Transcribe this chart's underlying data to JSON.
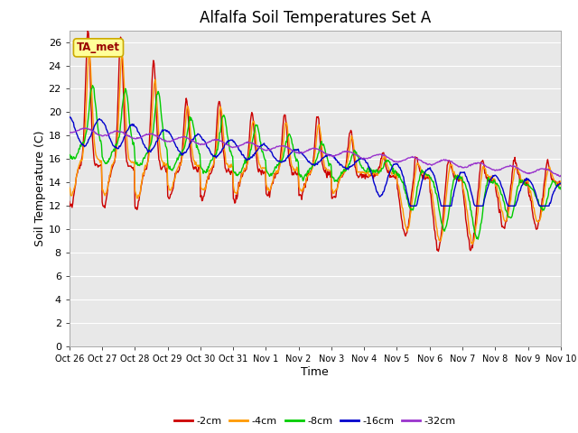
{
  "title": "Alfalfa Soil Temperatures Set A",
  "xlabel": "Time",
  "ylabel": "Soil Temperature (C)",
  "ylim": [
    0,
    27
  ],
  "yticks": [
    0,
    2,
    4,
    6,
    8,
    10,
    12,
    14,
    16,
    18,
    20,
    22,
    24,
    26
  ],
  "xtick_labels": [
    "Oct 26",
    "Oct 27",
    "Oct 28",
    "Oct 29",
    "Oct 30",
    "Oct 31",
    "Nov 1",
    "Nov 2",
    "Nov 3",
    "Nov 4",
    "Nov 5",
    "Nov 6",
    "Nov 7",
    "Nov 8",
    "Nov 9",
    "Nov 10"
  ],
  "n_days": 15,
  "colors": {
    "-2cm": "#cc0000",
    "-4cm": "#ff9900",
    "-8cm": "#00cc00",
    "-16cm": "#0000cc",
    "-32cm": "#9933cc"
  },
  "legend_label": "TA_met",
  "legend_box_facecolor": "#ffff99",
  "legend_box_edgecolor": "#ccaa00",
  "fig_facecolor": "#ffffff",
  "plot_facecolor": "#e8e8e8",
  "grid_color": "#ffffff",
  "title_fontsize": 12,
  "label_fontsize": 9,
  "tick_fontsize": 8
}
